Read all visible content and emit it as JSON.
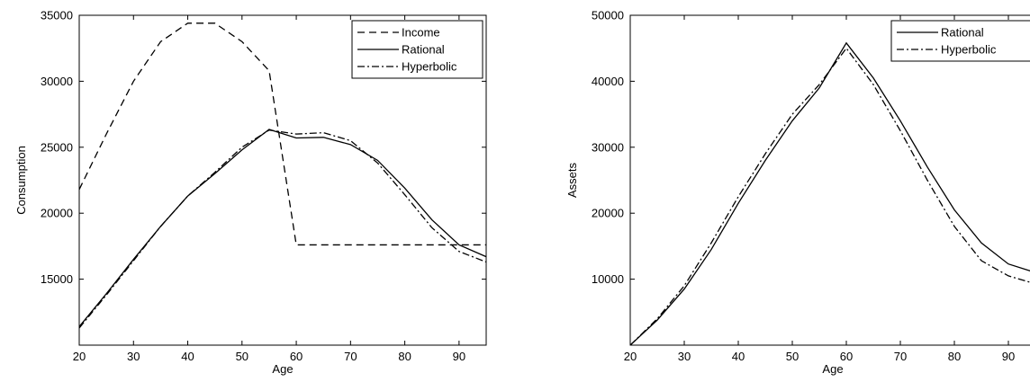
{
  "chart_data": [
    {
      "type": "line",
      "title": "",
      "xlabel": "Age",
      "ylabel": "Consumption",
      "xlim": [
        20,
        95
      ],
      "ylim": [
        10000,
        35000
      ],
      "xticks": [
        20,
        30,
        40,
        50,
        60,
        70,
        80,
        90
      ],
      "yticks": [
        15000,
        20000,
        25000,
        30000,
        35000
      ],
      "grid": false,
      "legend_position": "top-right",
      "series": [
        {
          "name": "Income",
          "style": "dashed",
          "x": [
            20,
            25,
            30,
            35,
            40,
            45,
            50,
            55,
            60,
            65,
            70,
            75,
            80,
            85,
            90,
            95
          ],
          "y": [
            21800,
            26000,
            30000,
            33000,
            34400,
            34400,
            33000,
            30800,
            17600,
            17600,
            17600,
            17600,
            17600,
            17600,
            17600,
            17600
          ]
        },
        {
          "name": "Rational",
          "style": "solid",
          "x": [
            20,
            25,
            30,
            35,
            40,
            45,
            50,
            55,
            60,
            65,
            70,
            75,
            80,
            85,
            90,
            95
          ],
          "y": [
            11400,
            13900,
            16500,
            19000,
            21300,
            23000,
            24800,
            26350,
            25700,
            25750,
            25200,
            24000,
            21900,
            19500,
            17600,
            16700
          ]
        },
        {
          "name": "Hyperbolic",
          "style": "dashdot",
          "x": [
            20,
            25,
            30,
            35,
            40,
            45,
            50,
            55,
            60,
            65,
            70,
            75,
            80,
            85,
            90,
            95
          ],
          "y": [
            11300,
            13800,
            16400,
            19000,
            21300,
            23100,
            25000,
            26300,
            26000,
            26100,
            25500,
            23800,
            21400,
            18900,
            17100,
            16300
          ]
        }
      ]
    },
    {
      "type": "line",
      "title": "",
      "xlabel": "Age",
      "ylabel": "Assets",
      "xlim": [
        20,
        95
      ],
      "ylim": [
        0,
        50000
      ],
      "xticks": [
        20,
        30,
        40,
        50,
        60,
        70,
        80,
        90
      ],
      "yticks": [
        10000,
        20000,
        30000,
        40000,
        50000
      ],
      "grid": false,
      "legend_position": "top-right",
      "series": [
        {
          "name": "Rational",
          "style": "solid",
          "x": [
            20,
            25,
            30,
            35,
            40,
            45,
            50,
            55,
            60,
            65,
            70,
            75,
            80,
            85,
            90,
            95
          ],
          "y": [
            0,
            3800,
            8500,
            14500,
            21500,
            28000,
            34000,
            39000,
            45800,
            40500,
            34000,
            27000,
            20500,
            15500,
            12300,
            11000
          ]
        },
        {
          "name": "Hyperbolic",
          "style": "dashdot",
          "x": [
            20,
            25,
            30,
            35,
            40,
            45,
            50,
            55,
            60,
            65,
            70,
            75,
            80,
            85,
            90,
            95
          ],
          "y": [
            0,
            4000,
            9000,
            15500,
            22500,
            29000,
            35000,
            39500,
            45000,
            39500,
            32500,
            25000,
            18000,
            12800,
            10500,
            9300
          ]
        }
      ]
    }
  ]
}
